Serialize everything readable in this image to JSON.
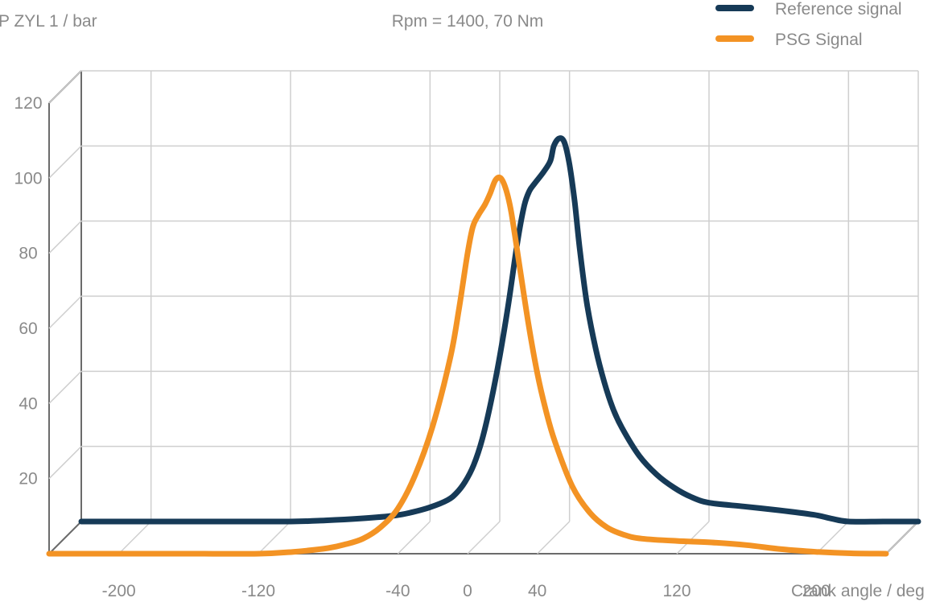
{
  "chart_data": {
    "type": "line",
    "title": "Rpm = 1400, 70 Nm",
    "ylabel": "P ZYL 1 / bar",
    "xlabel": "Crank angle / deg",
    "xlim": [
      -240,
      240
    ],
    "ylim": [
      0,
      120
    ],
    "x_ticks": [
      -200,
      -120,
      -40,
      0,
      40,
      120,
      200
    ],
    "y_ticks": [
      20,
      40,
      60,
      80,
      100,
      120
    ],
    "x_grid": [
      -200,
      -120,
      -40,
      0,
      40,
      120,
      200,
      240
    ],
    "grid": true,
    "legend_position": "top-right",
    "series": [
      {
        "name": "Reference signal",
        "color": "#163a57",
        "depth": "back",
        "points": [
          [
            -240,
            0
          ],
          [
            -200,
            0
          ],
          [
            -160,
            0
          ],
          [
            -120,
            0
          ],
          [
            -100,
            0.3
          ],
          [
            -80,
            0.8
          ],
          [
            -60,
            1.6
          ],
          [
            -50,
            2.5
          ],
          [
            -40,
            3.8
          ],
          [
            -30,
            5.7
          ],
          [
            -25,
            7.5
          ],
          [
            -20,
            10.5
          ],
          [
            -15,
            15
          ],
          [
            -10,
            22
          ],
          [
            -5,
            32
          ],
          [
            0,
            44
          ],
          [
            5,
            58
          ],
          [
            10,
            74
          ],
          [
            14,
            84
          ],
          [
            17,
            88
          ],
          [
            20,
            90
          ],
          [
            25,
            93
          ],
          [
            29,
            96
          ],
          [
            31,
            100
          ],
          [
            34,
            102
          ],
          [
            37,
            101
          ],
          [
            40,
            95
          ],
          [
            43,
            85
          ],
          [
            46,
            72
          ],
          [
            50,
            58
          ],
          [
            55,
            46
          ],
          [
            60,
            37
          ],
          [
            65,
            30
          ],
          [
            70,
            25
          ],
          [
            80,
            17.5
          ],
          [
            90,
            12.5
          ],
          [
            100,
            9
          ],
          [
            110,
            6.5
          ],
          [
            120,
            5
          ],
          [
            140,
            4
          ],
          [
            160,
            3
          ],
          [
            180,
            1.8
          ],
          [
            190,
            0.8
          ],
          [
            200,
            0
          ],
          [
            220,
            0
          ],
          [
            240,
            0
          ]
        ]
      },
      {
        "name": "PSG Signal",
        "color": "#f39324",
        "depth": "front",
        "points": [
          [
            -240,
            0
          ],
          [
            -200,
            0
          ],
          [
            -160,
            0
          ],
          [
            -120,
            0
          ],
          [
            -100,
            0.5
          ],
          [
            -80,
            1.5
          ],
          [
            -70,
            2.5
          ],
          [
            -60,
            4
          ],
          [
            -50,
            7
          ],
          [
            -40,
            12
          ],
          [
            -30,
            21
          ],
          [
            -20,
            34
          ],
          [
            -10,
            52
          ],
          [
            -5,
            65
          ],
          [
            0,
            80
          ],
          [
            3,
            87
          ],
          [
            6,
            90
          ],
          [
            10,
            93
          ],
          [
            13,
            96
          ],
          [
            16,
            99.5
          ],
          [
            19,
            100
          ],
          [
            22,
            97
          ],
          [
            25,
            91
          ],
          [
            30,
            76
          ],
          [
            35,
            61
          ],
          [
            40,
            48
          ],
          [
            45,
            38
          ],
          [
            50,
            30
          ],
          [
            60,
            18
          ],
          [
            70,
            11
          ],
          [
            80,
            7
          ],
          [
            90,
            5
          ],
          [
            100,
            4
          ],
          [
            120,
            3.4
          ],
          [
            140,
            3
          ],
          [
            160,
            2.3
          ],
          [
            180,
            1.2
          ],
          [
            200,
            0.5
          ],
          [
            220,
            0.1
          ],
          [
            240,
            0
          ]
        ]
      }
    ]
  }
}
